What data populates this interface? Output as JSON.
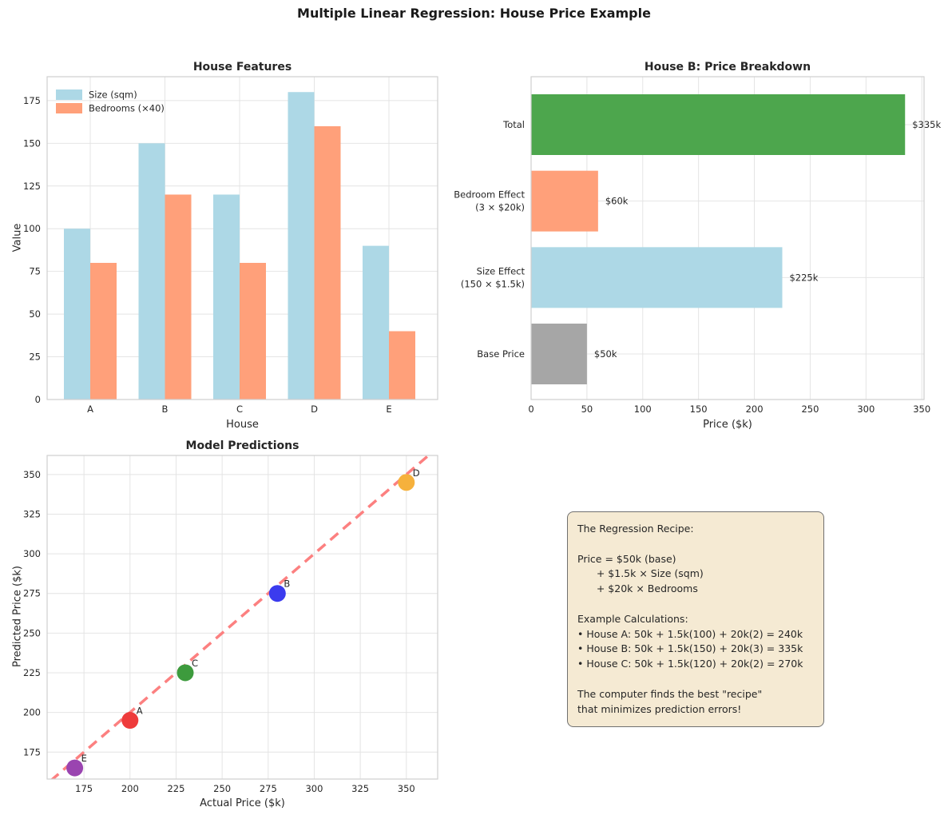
{
  "figure": {
    "title": "Multiple Linear Regression: House Price Example"
  },
  "chart_data": [
    {
      "id": "features",
      "type": "bar",
      "title": "House Features",
      "xlabel": "House",
      "ylabel": "Value",
      "categories": [
        "A",
        "B",
        "C",
        "D",
        "E"
      ],
      "series": [
        {
          "name": "Size (sqm)",
          "color": "#ADD8E6",
          "values": [
            100,
            150,
            120,
            180,
            90
          ]
        },
        {
          "name": "Bedrooms (×40)",
          "color": "#FFA07A",
          "values": [
            80,
            120,
            80,
            160,
            40
          ]
        }
      ],
      "yticks": [
        0,
        25,
        50,
        75,
        100,
        125,
        150,
        175
      ],
      "ylim": [
        0,
        189
      ],
      "grid": true,
      "legend_position": "upper-left"
    },
    {
      "id": "breakdown",
      "type": "barh",
      "title": "House B: Price Breakdown",
      "xlabel": "Price ($k)",
      "categories": [
        "Total",
        "Bedroom Effect\n(3 × $20k)",
        "Size Effect\n(150 × $1.5k)",
        "Base Price"
      ],
      "values": [
        335,
        60,
        225,
        50
      ],
      "value_labels": [
        "$335k",
        "$60k",
        "$225k",
        "$50k"
      ],
      "colors": [
        "#4DA64D",
        "#FFA07A",
        "#ADD8E6",
        "#A6A6A6"
      ],
      "xticks": [
        0,
        50,
        100,
        150,
        200,
        250,
        300,
        350
      ],
      "xlim": [
        0,
        352
      ],
      "grid": true
    },
    {
      "id": "predictions",
      "type": "scatter",
      "title": "Model Predictions",
      "xlabel": "Actual Price ($k)",
      "ylabel": "Predicted Price ($k)",
      "points": [
        {
          "label": "A",
          "x": 200,
          "y": 195,
          "color": "#EE3B3B"
        },
        {
          "label": "B",
          "x": 280,
          "y": 275,
          "color": "#3B3BEE"
        },
        {
          "label": "C",
          "x": 230,
          "y": 225,
          "color": "#3D9B3D"
        },
        {
          "label": "D",
          "x": 350,
          "y": 345,
          "color": "#F6B13C"
        },
        {
          "label": "E",
          "x": 170,
          "y": 165,
          "color": "#9A44B0"
        }
      ],
      "reference_line": {
        "type": "identity",
        "style": "dashed",
        "color": "#FC8080"
      },
      "xticks": [
        175,
        200,
        225,
        250,
        275,
        300,
        325,
        350
      ],
      "yticks": [
        175,
        200,
        225,
        250,
        275,
        300,
        325,
        350
      ],
      "xlim": [
        155,
        367
      ],
      "ylim": [
        158,
        362
      ],
      "grid": true
    }
  ],
  "recipe_box": {
    "background": "#F5EAD3",
    "border_color": "#707070",
    "lines": [
      "The Regression Recipe:",
      "",
      "Price = $50k (base)",
      "      + $1.5k × Size (sqm)",
      "      + $20k × Bedrooms",
      "",
      "Example Calculations:",
      "• House A: 50k + 1.5k(100) + 20k(2) = 240k",
      "• House B: 50k + 1.5k(150) + 20k(3) = 335k",
      "• House C: 50k + 1.5k(120) + 20k(2) = 270k",
      "",
      "The computer finds the best \"recipe\"",
      "that minimizes prediction errors!"
    ]
  },
  "style": {
    "grid_color": "#E4E4E4",
    "spine_color": "#CFCFCF",
    "text_color": "#262626"
  }
}
